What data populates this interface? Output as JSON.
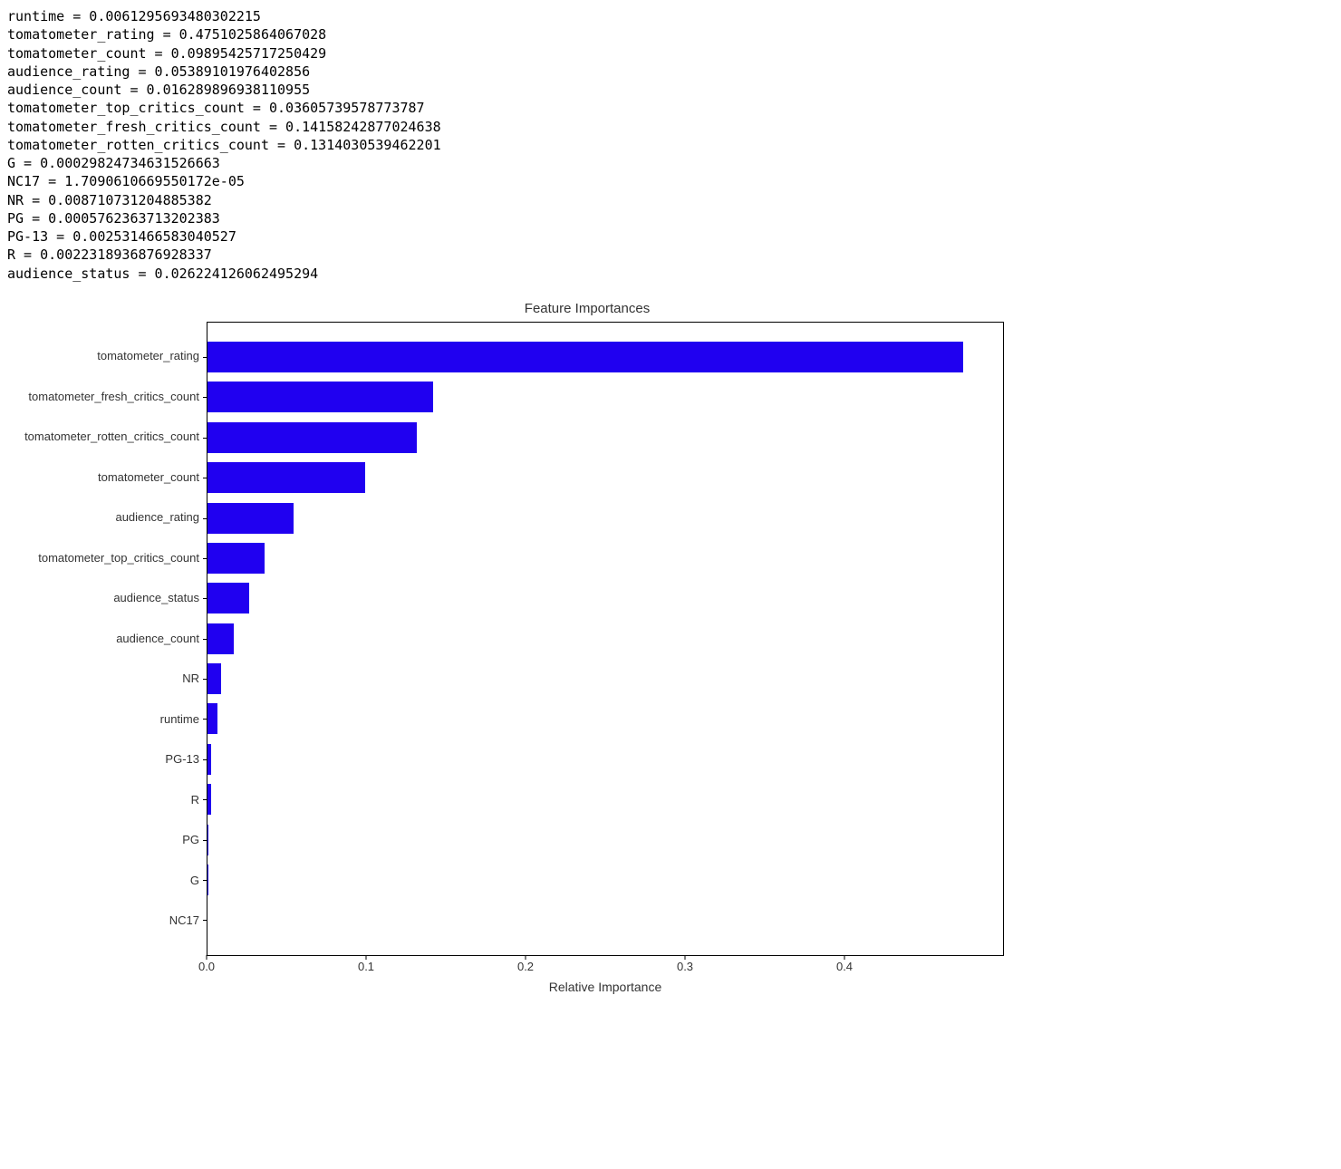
{
  "text_output": {
    "lines": [
      "runtime = 0.0061295693480302215",
      "tomatometer_rating = 0.4751025864067028",
      "tomatometer_count = 0.09895425717250429",
      "audience_rating = 0.05389101976402856",
      "audience_count = 0.016289896938110955",
      "tomatometer_top_critics_count = 0.03605739578773787",
      "tomatometer_fresh_critics_count = 0.14158242877024638",
      "tomatometer_rotten_critics_count = 0.1314030539462201",
      "G = 0.00029824734631526663",
      "NC17 = 1.7090610669550172e-05",
      "NR = 0.008710731204885382",
      "PG = 0.0005762363713202383",
      "PG-13 = 0.002531466583040527",
      "R = 0.0022318936876928337",
      "audience_status = 0.026224126062495294"
    ]
  },
  "chart": {
    "type": "bar-horizontal",
    "title": "Feature Importances",
    "title_fontsize": 15,
    "xlabel": "Relative Importance",
    "label_fontsize": 14,
    "tick_fontsize": 13,
    "bar_color": "#2000f0",
    "background_color": "#ffffff",
    "border_color": "#000000",
    "xlim": [
      0.0,
      0.5
    ],
    "xticks": [
      0.0,
      0.1,
      0.2,
      0.3,
      0.4
    ],
    "xtick_labels": [
      "0.0",
      "0.1",
      "0.2",
      "0.3",
      "0.4"
    ],
    "bar_height_ratio": 0.77,
    "items": [
      {
        "label": "tomatometer_rating",
        "value": 0.4751025864067028
      },
      {
        "label": "tomatometer_fresh_critics_count",
        "value": 0.14158242877024638
      },
      {
        "label": "tomatometer_rotten_critics_count",
        "value": 0.1314030539462201
      },
      {
        "label": "tomatometer_count",
        "value": 0.09895425717250429
      },
      {
        "label": "audience_rating",
        "value": 0.05389101976402856
      },
      {
        "label": "tomatometer_top_critics_count",
        "value": 0.03605739578773787
      },
      {
        "label": "audience_status",
        "value": 0.026224126062495294
      },
      {
        "label": "audience_count",
        "value": 0.016289896938110955
      },
      {
        "label": "NR",
        "value": 0.008710731204885382
      },
      {
        "label": "runtime",
        "value": 0.0061295693480302215
      },
      {
        "label": "PG-13",
        "value": 0.002531466583040527
      },
      {
        "label": "R",
        "value": 0.0022318936876928337
      },
      {
        "label": "PG",
        "value": 0.0005762363713202383
      },
      {
        "label": "G",
        "value": 0.00029824734631526663
      },
      {
        "label": "NC17",
        "value": 1.7090610669550172e-05
      }
    ]
  }
}
